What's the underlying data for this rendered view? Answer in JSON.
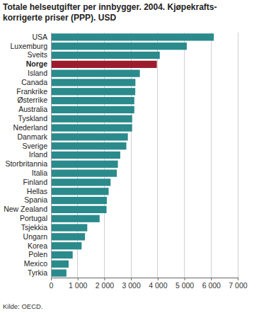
{
  "chart_data": {
    "type": "bar",
    "orientation": "horizontal",
    "title": "Totale helseutgifter per innbygger. 2004. Kjøpekrafts-korrigerte priser (PPP). USD",
    "source": "Kilde: OECD.",
    "categories": [
      "USA",
      "Luxemburg",
      "Sveits",
      "Norge",
      "Island",
      "Canada",
      "Frankrike",
      "Østerrike",
      "Australia",
      "Tyskland",
      "Nederland",
      "Danmark",
      "Sverige",
      "Irland",
      "Storbritannia",
      "Italia",
      "Finland",
      "Hellas",
      "Spania",
      "New Zealand",
      "Portugal",
      "Tsjekkia",
      "Ungarn",
      "Korea",
      "Polen",
      "Mexico",
      "Tyrkia"
    ],
    "values": [
      6102,
      5089,
      4077,
      3966,
      3331,
      3165,
      3159,
      3124,
      3123,
      3043,
      3041,
      2881,
      2825,
      2596,
      2508,
      2467,
      2235,
      2162,
      2094,
      2083,
      1824,
      1361,
      1276,
      1149,
      814,
      662,
      580
    ],
    "colors": [
      "#2a8a8c",
      "#2a8a8c",
      "#2a8a8c",
      "#9c1c2e",
      "#2a8a8c",
      "#2a8a8c",
      "#2a8a8c",
      "#2a8a8c",
      "#2a8a8c",
      "#2a8a8c",
      "#2a8a8c",
      "#2a8a8c",
      "#2a8a8c",
      "#2a8a8c",
      "#2a8a8c",
      "#2a8a8c",
      "#2a8a8c",
      "#2a8a8c",
      "#2a8a8c",
      "#2a8a8c",
      "#2a8a8c",
      "#2a8a8c",
      "#2a8a8c",
      "#2a8a8c",
      "#2a8a8c",
      "#2a8a8c",
      "#2a8a8c"
    ],
    "xlim": [
      0,
      7000
    ],
    "xticks": [
      0,
      {
        "value": 1000,
        "label": "1 000"
      },
      {
        "value": 2000,
        "label": "2 000"
      },
      {
        "value": 3000,
        "label": "3 000"
      },
      {
        "value": 4000,
        "label": "4 000"
      },
      {
        "value": 5000,
        "label": "5 000"
      },
      {
        "value": 6000,
        "label": "6 000"
      },
      {
        "value": 7000,
        "label": "7 000"
      }
    ],
    "grid": true
  }
}
